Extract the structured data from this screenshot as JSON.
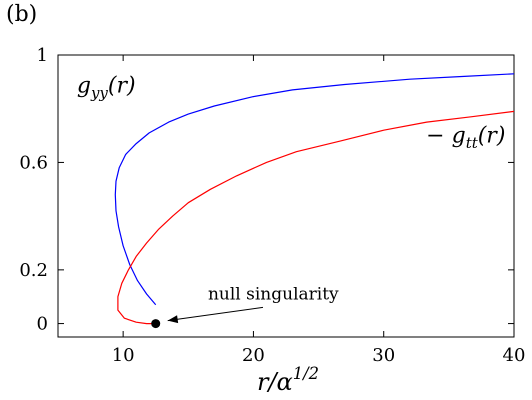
{
  "panel_label": "(b)",
  "chart_data": {
    "type": "line",
    "xlabel": "r/α^{1/2}",
    "ylabel": "",
    "xlim": [
      5,
      40
    ],
    "ylim": [
      -0.05,
      1.0
    ],
    "xticks": [
      10,
      20,
      30,
      40
    ],
    "yticks": [
      0,
      0.2,
      0.6,
      1
    ],
    "ytick_labels": [
      "0",
      "0.2",
      "0.6",
      "1"
    ],
    "grid": false,
    "series": [
      {
        "name": "g_yy(r)",
        "color": "#0000ff",
        "x": [
          12.5,
          11.8,
          11.1,
          10.5,
          10.0,
          9.65,
          9.45,
          9.4,
          9.45,
          9.7,
          10.2,
          11.0,
          12.0,
          13.5,
          15.0,
          17.0,
          20.0,
          23.0,
          27.0,
          32.0,
          36.0,
          40.0
        ],
        "y": [
          0.07,
          0.11,
          0.16,
          0.22,
          0.29,
          0.36,
          0.42,
          0.48,
          0.53,
          0.58,
          0.63,
          0.67,
          0.71,
          0.75,
          0.78,
          0.81,
          0.845,
          0.87,
          0.89,
          0.91,
          0.92,
          0.93
        ]
      },
      {
        "name": "−g_tt(r)",
        "color": "#ff0000",
        "x": [
          12.5,
          11.8,
          11.0,
          10.1,
          9.6,
          9.6,
          9.9,
          10.4,
          11.0,
          11.8,
          12.7,
          13.8,
          15.0,
          16.7,
          18.7,
          21.0,
          23.3,
          26.7,
          30.0,
          33.3,
          36.7,
          40.0
        ],
        "y": [
          0.0,
          0.0,
          0.005,
          0.02,
          0.05,
          0.1,
          0.15,
          0.2,
          0.25,
          0.3,
          0.35,
          0.4,
          0.45,
          0.5,
          0.55,
          0.6,
          0.64,
          0.68,
          0.72,
          0.75,
          0.77,
          0.79
        ]
      }
    ],
    "series_labels": [
      {
        "text": "g_yy(r)",
        "x": 8.7,
        "y": 0.86
      },
      {
        "text": "− g_tt(r)",
        "x": 36.3,
        "y": 0.675
      }
    ],
    "point": {
      "x": 12.5,
      "y": 0.0
    },
    "annotation": {
      "text": "null singularity",
      "x": 21.5,
      "y": 0.09
    }
  }
}
